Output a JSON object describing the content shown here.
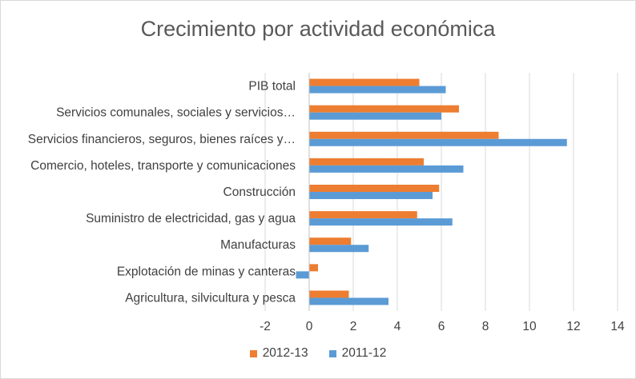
{
  "chart_data": {
    "type": "bar",
    "orientation": "horizontal",
    "title": "Crecimiento por actividad económica",
    "categories": [
      "PIB total",
      "Servicios comunales, sociales y servicios…",
      "Servicios financieros, seguros, bienes raíces y…",
      "Comercio, hoteles, transporte y comunicaciones",
      "Construcción",
      "Suministro de electricidad, gas y agua",
      "Manufacturas",
      "Explotación de minas y canteras",
      "Agricultura, silvicultura y pesca"
    ],
    "series": [
      {
        "name": "2012-13",
        "color": "#ed7d31",
        "values": [
          5.0,
          6.8,
          8.6,
          5.2,
          5.9,
          4.9,
          1.9,
          0.4,
          1.8
        ]
      },
      {
        "name": "2011-12",
        "color": "#5b9bd5",
        "values": [
          6.2,
          6.0,
          11.7,
          7.0,
          5.6,
          6.5,
          2.7,
          -0.6,
          3.6
        ]
      }
    ],
    "xlim": [
      -2,
      14
    ],
    "xticks": [
      "-2",
      "0",
      "2",
      "4",
      "6",
      "8",
      "10",
      "12",
      "14"
    ],
    "grid": true,
    "legend_position": "bottom"
  }
}
